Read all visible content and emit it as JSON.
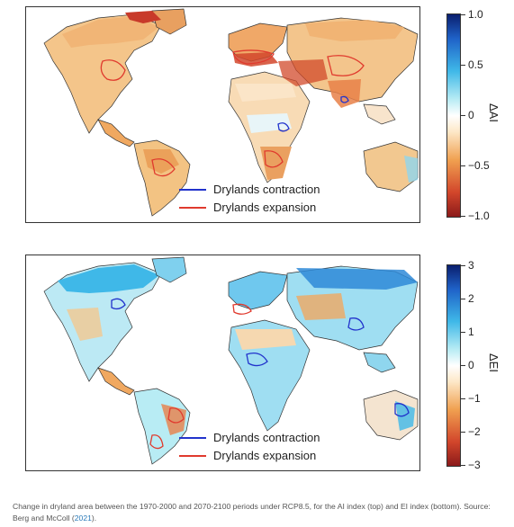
{
  "panels": [
    {
      "id": "top",
      "colorbar": {
        "label": "ΔAI",
        "ticks": [
          "1.0",
          "0.5",
          "0",
          "−0.5",
          "−1.0"
        ],
        "tick_values": [
          1.0,
          0.5,
          0,
          -0.5,
          -1.0
        ],
        "range": [
          -1.0,
          1.0
        ],
        "colors": [
          "#8b1a1a",
          "#d2462b",
          "#f0a050",
          "#fde8c8",
          "#ffffff",
          "#b8ecf4",
          "#3fb8e8",
          "#1f62c8",
          "#0a1f6e"
        ]
      },
      "legend": [
        {
          "label": "Drylands contraction",
          "color": "#2233cc"
        },
        {
          "label": "Drylands expansion",
          "color": "#e03a2e"
        }
      ]
    },
    {
      "id": "bottom",
      "colorbar": {
        "label": "ΔEI",
        "ticks": [
          "3",
          "2",
          "1",
          "0",
          "−1",
          "−2",
          "−3"
        ],
        "tick_values": [
          3,
          2,
          1,
          0,
          -1,
          -2,
          -3
        ],
        "range": [
          -3,
          3
        ],
        "colors": [
          "#8b1a1a",
          "#d2462b",
          "#f0a050",
          "#fde8c8",
          "#ffffff",
          "#b8ecf4",
          "#3fb8e8",
          "#1f62c8",
          "#0a1f6e"
        ]
      },
      "legend": [
        {
          "label": "Drylands contraction",
          "color": "#2233cc"
        },
        {
          "label": "Drylands expansion",
          "color": "#e03a2e"
        }
      ]
    }
  ],
  "caption": {
    "text": "Change in dryland area between the 1970-2000 and 2070-2100 periods under RCP8.5, for the AI index (top) and EI index (bottom). Source: Berg and McColl (",
    "link": "2021",
    "end": ")."
  }
}
